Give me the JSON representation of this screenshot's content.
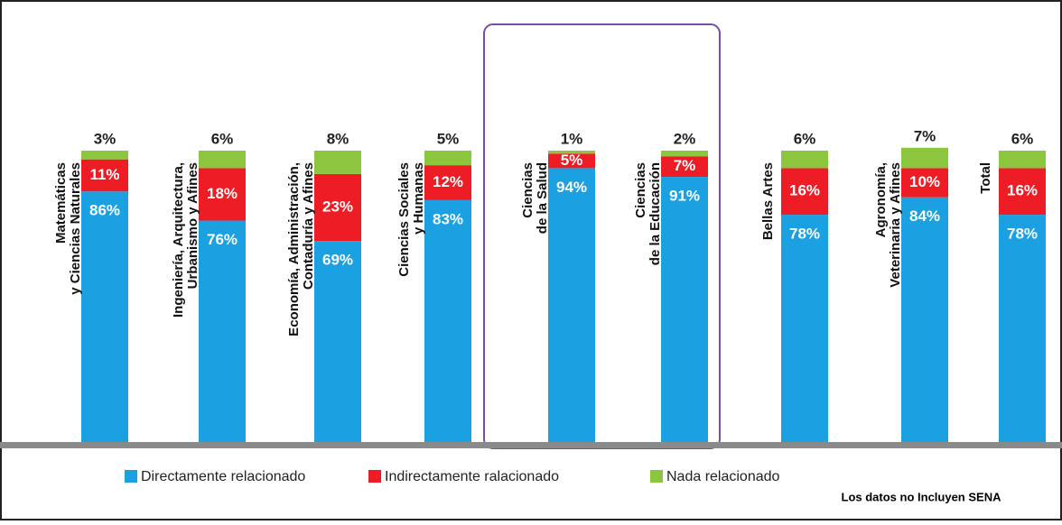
{
  "chart_data": {
    "type": "stacked_bar",
    "categories": [
      "Matemáticas\ny Ciencias Naturales",
      "Ingeniería, Arquitectura,\nUrbanismo y Afines",
      "Economía, Administración,\nContaduría y Afines",
      "Ciencias Sociales\ny Humanas",
      "Ciencias\nde la Salud",
      "Ciencias\nde la Educación",
      "Bellas Artes",
      "Agronomía,\nVeterinaria y Afines",
      "Total"
    ],
    "ylim": [
      0,
      100
    ],
    "series": [
      {
        "name": "Directamente relacionado",
        "color": "#1ba1e2",
        "values": [
          86,
          76,
          69,
          83,
          94,
          91,
          78,
          84,
          78
        ],
        "value_labels": [
          "86%",
          "76%",
          "69%",
          "83%",
          "94%",
          "91%",
          "78%",
          "84%",
          "78%"
        ]
      },
      {
        "name": "Indirectamente ralacionado",
        "color": "#ee1c25",
        "values": [
          11,
          18,
          23,
          12,
          5,
          7,
          16,
          10,
          16
        ],
        "value_labels": [
          "11%",
          "18%",
          "23%",
          "12%",
          "5%",
          "7%",
          "16%",
          "10%",
          "16%"
        ]
      },
      {
        "name": "Nada relacionado",
        "color": "#8cc63f",
        "values": [
          3,
          6,
          8,
          5,
          1,
          2,
          6,
          7,
          6
        ],
        "value_labels": [
          "3%",
          "6%",
          "8%",
          "5%",
          "1%",
          "2%",
          "6%",
          "7%",
          "6%"
        ]
      }
    ],
    "note": "Los datos no Incluyen SENA"
  }
}
